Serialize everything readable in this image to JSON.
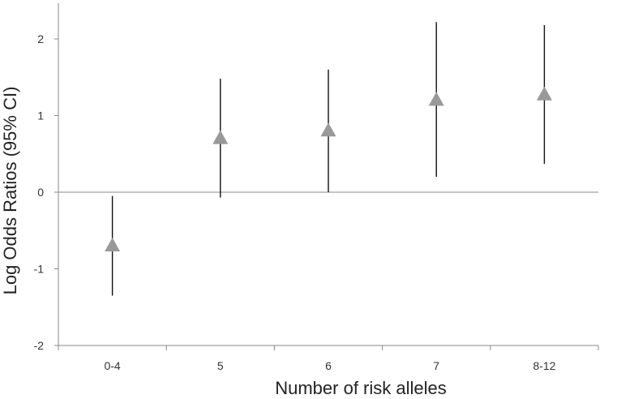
{
  "chart_data": {
    "type": "scatter",
    "title": "",
    "xlabel": "Number of risk alleles",
    "ylabel": "Log Odds Ratios (95% CI)",
    "categories": [
      "0-4",
      "5",
      "6",
      "7",
      "8-12"
    ],
    "ylim": [
      -2,
      2.5
    ],
    "yticks": [
      -2,
      -1,
      0,
      1,
      2
    ],
    "ytick_labels": [
      "-2",
      "-1",
      "0",
      "1",
      "2"
    ],
    "grid": false,
    "legend": "none",
    "marker": "triangle",
    "colors": {
      "marker": "#999999",
      "error_bar": "#111111",
      "axis": "#888888"
    },
    "series": [
      {
        "values": [
          -0.7,
          0.7,
          0.8,
          1.2,
          1.27
        ],
        "lower": [
          -1.35,
          -0.07,
          0.0,
          0.2,
          0.37
        ],
        "upper": [
          -0.05,
          1.48,
          1.6,
          2.22,
          2.18
        ]
      }
    ]
  }
}
